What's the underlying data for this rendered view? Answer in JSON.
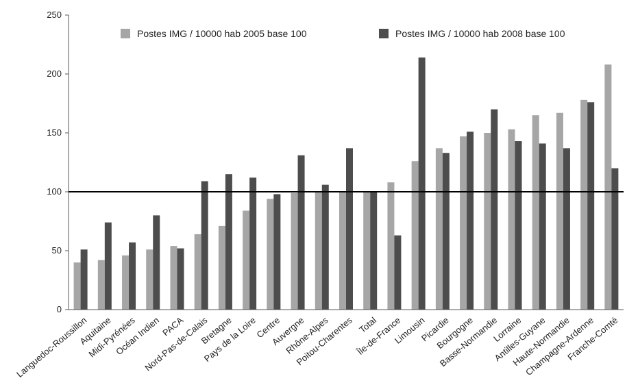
{
  "chart_data": {
    "type": "bar",
    "categories": [
      "Languedoc-Roussillon",
      "Aquitaine",
      "Midi-Pyrénées",
      "Océan Indien",
      "PACA",
      "Nord-Pas-de-Calais",
      "Bretagne",
      "Pays de la Loire",
      "Centre",
      "Auvergne",
      "Rhône-Alpes",
      "Poitou-Charentes",
      "Total",
      "Île-de-France",
      "Limousin",
      "Picardie",
      "Bourgogne",
      "Basse-Normandie",
      "Lorraine",
      "Antilles-Guyane",
      "Haute-Normandie",
      "Champagne-Ardenne",
      "Franche-Comté"
    ],
    "series": [
      {
        "name": "Postes IMG / 10000 hab 2005 base 100",
        "color": "#a6a6a6",
        "values": [
          40,
          42,
          46,
          51,
          54,
          64,
          71,
          84,
          94,
          99,
          100,
          100,
          100,
          108,
          126,
          137,
          147,
          150,
          153,
          165,
          167,
          178,
          208
        ]
      },
      {
        "name": "Postes IMG / 10000 hab 2008 base 100",
        "color": "#4d4d4d",
        "values": [
          51,
          74,
          57,
          80,
          52,
          109,
          115,
          112,
          98,
          131,
          106,
          137,
          100,
          63,
          214,
          133,
          151,
          170,
          143,
          141,
          137,
          176,
          120
        ]
      }
    ],
    "ylim": [
      0,
      250
    ],
    "yticks": [
      0,
      50,
      100,
      150,
      200,
      250
    ],
    "yticks_labels": [
      "0",
      "50",
      "100",
      "150",
      "200",
      "250"
    ],
    "reference_line": 100,
    "grid": false,
    "legend_position": "top"
  }
}
